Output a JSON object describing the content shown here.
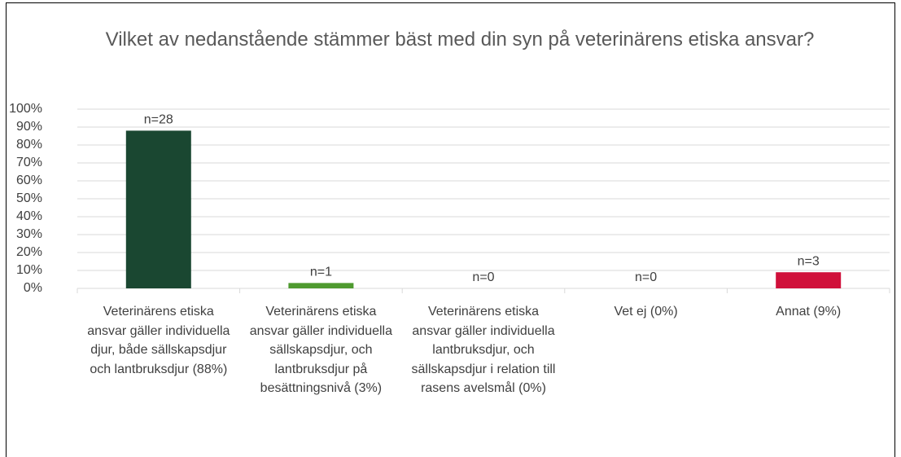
{
  "chart_data": {
    "type": "bar",
    "title": "Vilket av nedanstående stämmer bäst med din syn på veterinärens etiska ansvar?",
    "categories": [
      "Veterinärens etiska ansvar gäller individuella djur, både sällskapsdjur och lantbruksdjur (88%)",
      "Veterinärens etiska ansvar gäller individuella sällskapsdjur, och lantbruksdjur på besättningsnivå (3%)",
      "Veterinärens etiska ansvar gäller individuella lantbruksdjur, och sällskapsdjur i relation till rasens avelsmål (0%)",
      "Vet ej (0%)",
      "Annat (9%)"
    ],
    "values": [
      88,
      3,
      0,
      0,
      9
    ],
    "data_labels": [
      "n=28",
      "n=1",
      "n=0",
      "n=0",
      "n=3"
    ],
    "colors": [
      "#1a4731",
      "#4e9a2f",
      "#7f7f7f",
      "#7f7f7f",
      "#d0103a"
    ],
    "ylim": [
      0,
      100
    ],
    "yticks": [
      {
        "value": 0,
        "label": "0%"
      },
      {
        "value": 10,
        "label": "10%"
      },
      {
        "value": 20,
        "label": "20%"
      },
      {
        "value": 30,
        "label": "30%"
      },
      {
        "value": 40,
        "label": "40%"
      },
      {
        "value": 50,
        "label": "50%"
      },
      {
        "value": 60,
        "label": "60%"
      },
      {
        "value": 70,
        "label": "70%"
      },
      {
        "value": 80,
        "label": "80%"
      },
      {
        "value": 90,
        "label": "90%"
      },
      {
        "value": 100,
        "label": "100%"
      }
    ],
    "grid": true
  }
}
